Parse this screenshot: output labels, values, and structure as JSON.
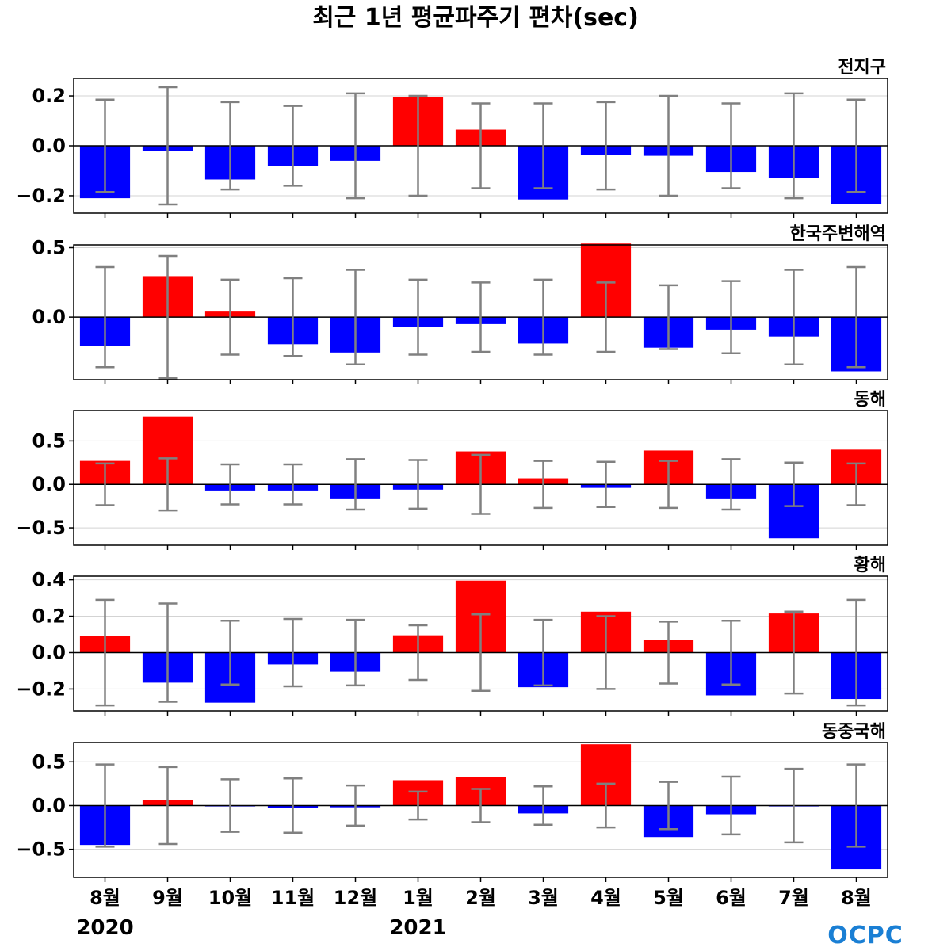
{
  "title": "최근 1년 평균파주기 편차(sec)",
  "logo": "OCPC",
  "colors": {
    "positive": "#ff0000",
    "negative": "#0000ff",
    "error_bar": "#808080",
    "zero_line": "#000000",
    "grid": "#d3d3d3"
  },
  "chart_data": {
    "type": "bar",
    "categories": [
      "8월",
      "9월",
      "10월",
      "11월",
      "12월",
      "1월",
      "2월",
      "3월",
      "4월",
      "5월",
      "6월",
      "7월",
      "8월"
    ],
    "year_labels": [
      {
        "label": "2020",
        "category_index": 0
      },
      {
        "label": "2021",
        "category_index": 5
      }
    ],
    "grid": true,
    "panels": [
      {
        "name": "전지구",
        "ylim": [
          -0.27,
          0.27
        ],
        "yticks": [
          -0.2,
          0.0,
          0.2
        ],
        "ytick_labels": [
          "−0.2",
          "0.0",
          "0.2"
        ],
        "values": [
          -0.21,
          -0.02,
          -0.135,
          -0.08,
          -0.06,
          0.195,
          0.065,
          -0.215,
          -0.035,
          -0.04,
          -0.105,
          -0.13,
          -0.235
        ],
        "error": [
          0.185,
          0.235,
          0.175,
          0.16,
          0.21,
          0.2,
          0.17,
          0.17,
          0.175,
          0.2,
          0.17,
          0.21,
          0.185
        ]
      },
      {
        "name": "한국주변해역",
        "ylim": [
          -0.45,
          0.52
        ],
        "yticks": [
          0.0,
          0.5
        ],
        "ytick_labels": [
          "0.0",
          "0.5"
        ],
        "values": [
          -0.21,
          0.295,
          0.04,
          -0.195,
          -0.255,
          -0.07,
          -0.05,
          -0.19,
          0.53,
          -0.22,
          -0.09,
          -0.14,
          -0.39
        ],
        "error": [
          0.36,
          0.44,
          0.27,
          0.28,
          0.34,
          0.27,
          0.25,
          0.27,
          0.25,
          0.23,
          0.26,
          0.34,
          0.36
        ]
      },
      {
        "name": "동해",
        "ylim": [
          -0.7,
          0.85
        ],
        "yticks": [
          -0.5,
          0.0,
          0.5
        ],
        "ytick_labels": [
          "−0.5",
          "0.0",
          "0.5"
        ],
        "values": [
          0.27,
          0.78,
          -0.07,
          -0.07,
          -0.17,
          -0.06,
          0.38,
          0.07,
          -0.04,
          0.39,
          -0.17,
          -0.62,
          0.4
        ],
        "error": [
          0.24,
          0.3,
          0.23,
          0.23,
          0.29,
          0.28,
          0.34,
          0.27,
          0.26,
          0.27,
          0.29,
          0.25,
          0.24
        ]
      },
      {
        "name": "황해",
        "ylim": [
          -0.32,
          0.42
        ],
        "yticks": [
          -0.2,
          0.0,
          0.2,
          0.4
        ],
        "ytick_labels": [
          "−0.2",
          "0.0",
          "0.2",
          "0.4"
        ],
        "values": [
          0.09,
          -0.165,
          -0.275,
          -0.065,
          -0.105,
          0.095,
          0.395,
          -0.19,
          0.225,
          0.07,
          -0.235,
          0.215,
          -0.255
        ],
        "error": [
          0.29,
          0.27,
          0.175,
          0.185,
          0.18,
          0.15,
          0.21,
          0.18,
          0.2,
          0.17,
          0.175,
          0.225,
          0.29
        ]
      },
      {
        "name": "동중국해",
        "ylim": [
          -0.82,
          0.72
        ],
        "yticks": [
          -0.5,
          0.0,
          0.5
        ],
        "ytick_labels": [
          "−0.5",
          "0.0",
          "0.5"
        ],
        "values": [
          -0.45,
          0.06,
          -0.01,
          -0.03,
          -0.02,
          0.29,
          0.33,
          -0.09,
          0.7,
          -0.36,
          -0.1,
          -0.01,
          -0.73
        ],
        "error": [
          0.47,
          0.44,
          0.3,
          0.31,
          0.23,
          0.16,
          0.19,
          0.22,
          0.25,
          0.27,
          0.33,
          0.42,
          0.47
        ]
      }
    ]
  }
}
